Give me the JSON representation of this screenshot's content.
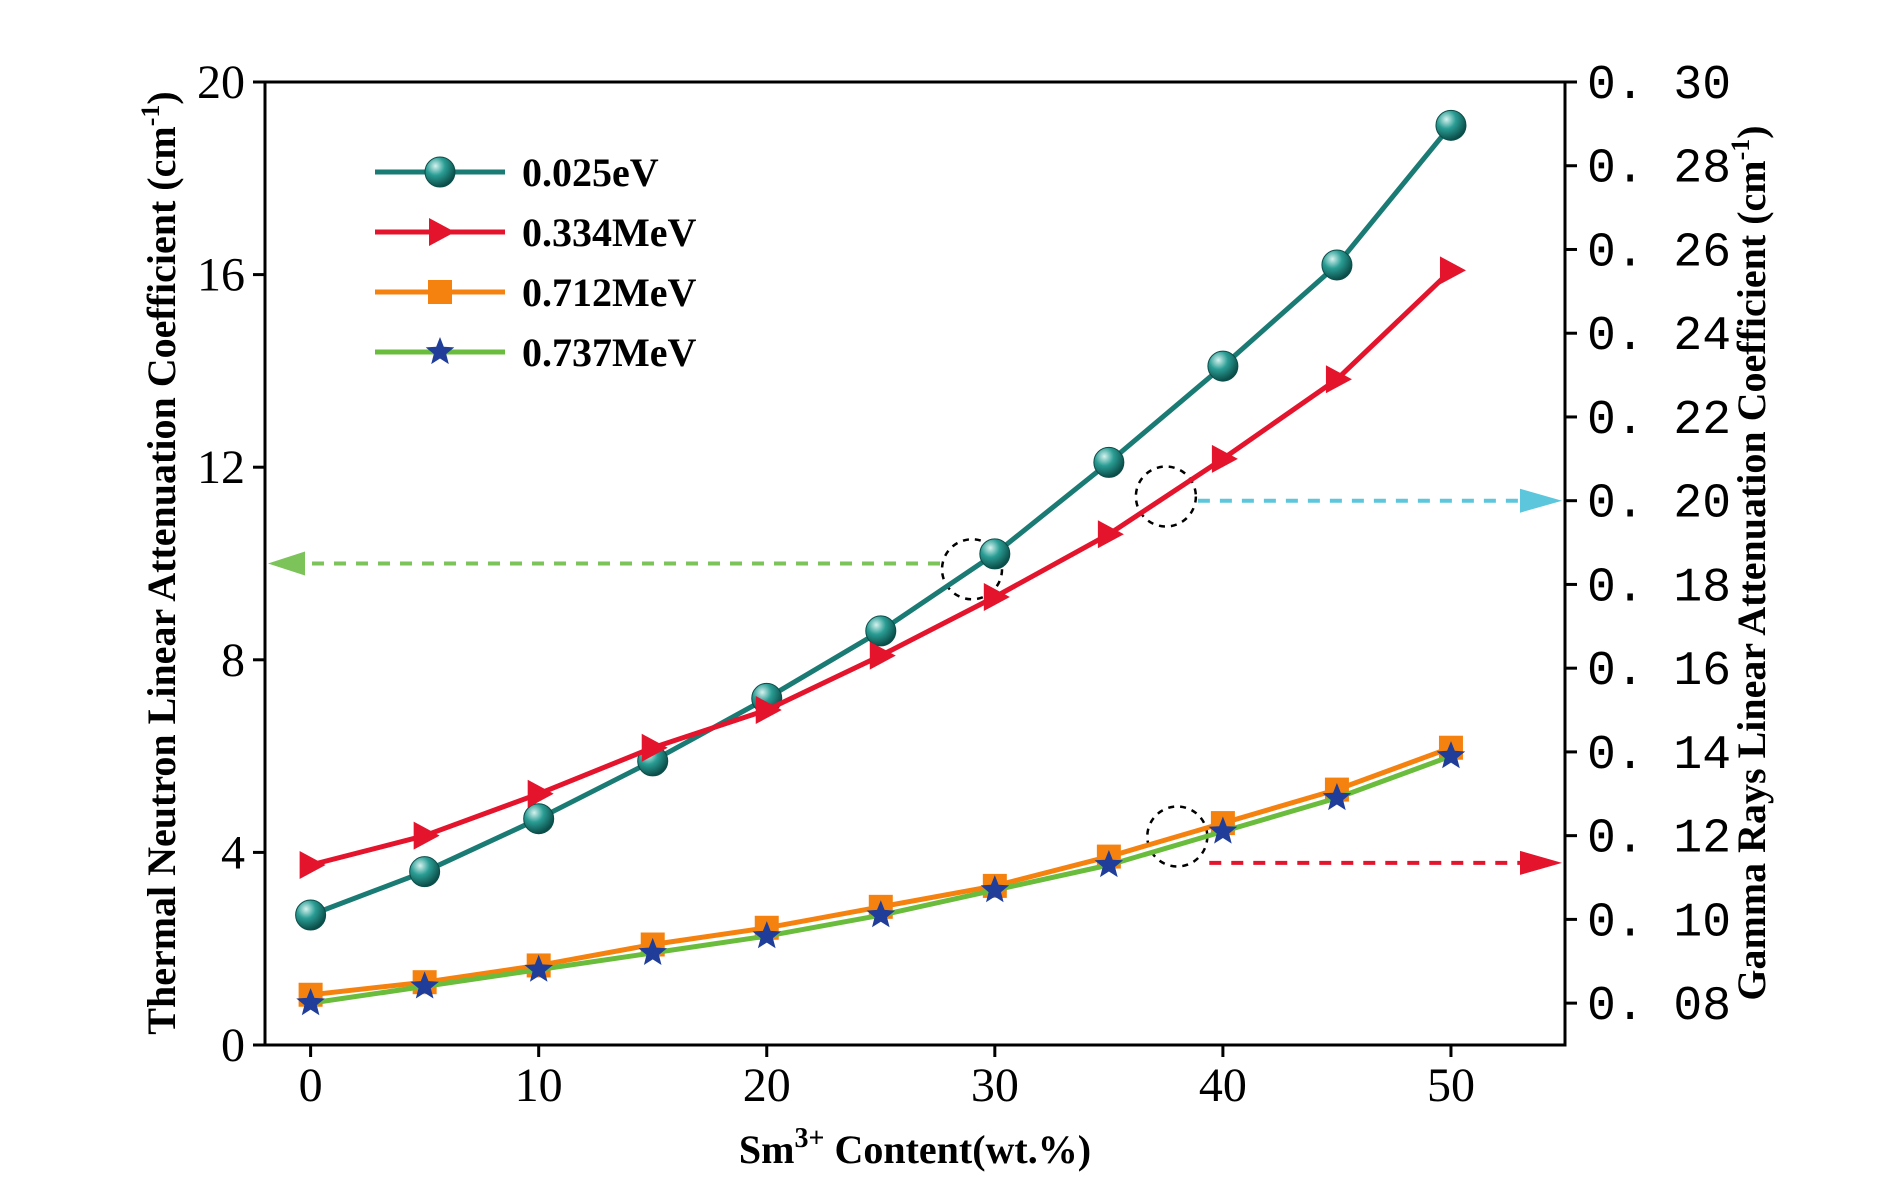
{
  "chart_data": {
    "type": "line",
    "xlabel_base": "Sm",
    "xlabel_sup": "3+",
    "xlabel_rest": " Content(wt.%)",
    "ylabel_left_main": "Thermal Neutron Linear Attenuation Coefficient (cm",
    "ylabel_left_sup": "-1",
    "ylabel_left_close": ")",
    "ylabel_right_main": "Gamma Rays Linear Attenuation Coefficient (cm",
    "ylabel_right_sup": "-1",
    "ylabel_right_close": ")",
    "xlim": [
      -2,
      55
    ],
    "ylim_left": [
      0,
      20
    ],
    "ylim_right": [
      0.07,
      0.3
    ],
    "x_ticks": [
      0,
      10,
      20,
      30,
      40,
      50
    ],
    "x_tick_labels": [
      "0",
      "10",
      "20",
      "30",
      "40",
      "50"
    ],
    "y_left_ticks": [
      0,
      4,
      8,
      12,
      16,
      20
    ],
    "y_left_tick_labels": [
      "0",
      "4",
      "8",
      "12",
      "16",
      "20"
    ],
    "y_right_ticks": [
      0.08,
      0.1,
      0.12,
      0.14,
      0.16,
      0.18,
      0.2,
      0.22,
      0.24,
      0.26,
      0.28,
      0.3
    ],
    "y_right_tick_labels": [
      "0. 08",
      "0. 10",
      "0. 12",
      "0. 14",
      "0. 16",
      "0. 18",
      "0. 20",
      "0. 22",
      "0. 24",
      "0. 26",
      "0. 28",
      "0. 30"
    ],
    "x": [
      0,
      5,
      10,
      15,
      20,
      25,
      30,
      35,
      40,
      45,
      50
    ],
    "series": [
      {
        "name": "0.025eV",
        "axis": "left",
        "color": "#1a7a74",
        "marker": "sphere",
        "values": [
          2.7,
          3.6,
          4.7,
          5.9,
          7.2,
          8.6,
          10.2,
          12.1,
          14.1,
          16.2,
          19.1
        ]
      },
      {
        "name": "0.334MeV",
        "axis": "right",
        "color": "#e3142c",
        "marker": "triangle-right",
        "values": [
          0.113,
          0.12,
          0.13,
          0.141,
          0.15,
          0.163,
          0.177,
          0.192,
          0.21,
          0.229,
          0.255
        ]
      },
      {
        "name": "0.712MeV",
        "axis": "right",
        "color": "#f5820f",
        "marker": "square",
        "values": [
          0.082,
          0.085,
          0.089,
          0.094,
          0.098,
          0.103,
          0.108,
          0.115,
          0.123,
          0.131,
          0.141
        ]
      },
      {
        "name": "0.737MeV",
        "axis": "right",
        "color": "#6abd3c",
        "marker_color": "#1f3d99",
        "marker": "star",
        "values": [
          0.08,
          0.084,
          0.088,
          0.092,
          0.096,
          0.101,
          0.107,
          0.113,
          0.121,
          0.129,
          0.139
        ]
      }
    ],
    "annotations": [
      {
        "target_series": "0.025eV",
        "at_x": 29,
        "points_to": "left",
        "y_value": 10,
        "color": "#7cc35a"
      },
      {
        "target_series": "0.334MeV",
        "at_x": 37.5,
        "points_to": "right",
        "y_value": 0.2,
        "color": "#5bc6dc"
      },
      {
        "target_series": "0.712MeV",
        "at_x": 38,
        "points_to": "right",
        "y_value": 0.1135,
        "color": "#e3142c"
      }
    ],
    "legend_position": "top-left",
    "grid": false
  }
}
